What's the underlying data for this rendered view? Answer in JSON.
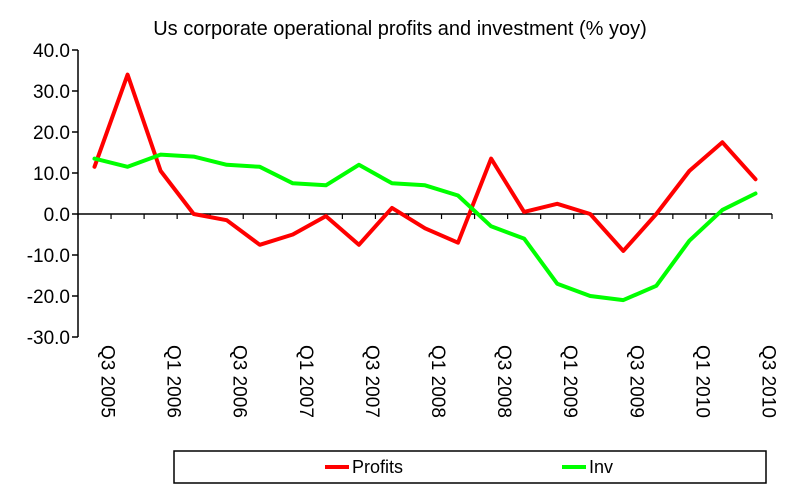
{
  "chart_data": {
    "type": "line",
    "title": "Us corporate operational profits and investment (% yoy)",
    "xlabel": "",
    "ylabel": "",
    "ylim": [
      -30,
      40
    ],
    "yticks": [
      "40.0",
      "30.0",
      "20.0",
      "10.0",
      "0.0",
      "-10.0",
      "-20.0",
      "-30.0"
    ],
    "x": [
      "Q3 2005",
      "Q4 2005",
      "Q1 2006",
      "Q2 2006",
      "Q3 2006",
      "Q4 2006",
      "Q1 2007",
      "Q2 2007",
      "Q3 2007",
      "Q4 2007",
      "Q1 2008",
      "Q2 2008",
      "Q3 2008",
      "Q4 2008",
      "Q1 2009",
      "Q2 2009",
      "Q3 2009",
      "Q4 2009",
      "Q1 2010",
      "Q2 2010",
      "Q3 2010"
    ],
    "xtick_labels": [
      "Q3 2005",
      "Q1 2006",
      "Q3 2006",
      "Q1 2007",
      "Q3 2007",
      "Q1 2008",
      "Q3 2008",
      "Q1 2009",
      "Q3 2009",
      "Q1 2010",
      "Q3 2010"
    ],
    "grid": false,
    "legend_position": "bottom",
    "series": [
      {
        "name": "Profits",
        "color": "#ff0000",
        "values": [
          11.5,
          34.0,
          10.5,
          0.0,
          -1.5,
          -7.5,
          -5.0,
          -0.5,
          -7.5,
          1.5,
          -3.5,
          -7.0,
          13.5,
          0.5,
          2.5,
          0.0,
          -9.0,
          0.0,
          10.5,
          17.5,
          8.5
        ]
      },
      {
        "name": "Inv",
        "color": "#00ff00",
        "values": [
          13.5,
          11.5,
          14.5,
          14.0,
          12.0,
          11.5,
          7.5,
          7.0,
          12.0,
          7.5,
          7.0,
          4.5,
          -3.0,
          -6.0,
          -17.0,
          -20.0,
          -21.0,
          -17.5,
          -6.5,
          1.0,
          5.0
        ]
      }
    ]
  }
}
